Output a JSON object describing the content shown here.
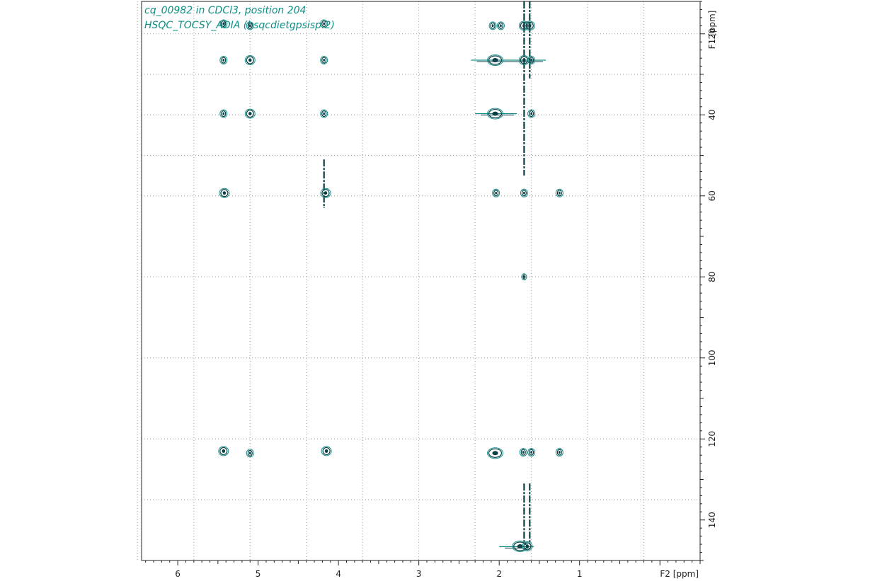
{
  "title_lines": [
    "cq_00982 in CDCl3, position 204",
    "HSQC_TOCSY_ADIA (hsqcdietgpsisp.2)"
  ],
  "colors": {
    "title": "#0e8f84",
    "contour_dark": "#0b3f45",
    "contour_light": "#178f88",
    "grid": "#9a9a9a",
    "axis": "#222222"
  },
  "chart_data": {
    "type": "scatter",
    "subtype": "2D NMR contour plot",
    "xlabel": "F2 [ppm]",
    "ylabel": "F1 [ppm]",
    "xlim": [
      6.45,
      -0.5
    ],
    "ylim": [
      150,
      12
    ],
    "x_ticks": [
      6,
      5,
      4,
      3,
      2,
      1
    ],
    "y_ticks": [
      20,
      40,
      60,
      80,
      100,
      120,
      140
    ],
    "grid": true,
    "x_grid": [
      6.5,
      5.8,
      5.1,
      4.4,
      3.7,
      3.0,
      2.3,
      1.6,
      0.9,
      0.2
    ],
    "y_grid": [
      20,
      30,
      40,
      50,
      60,
      80,
      100,
      120,
      135
    ],
    "peaks": [
      {
        "x": 5.43,
        "y": 17.5,
        "size": "s"
      },
      {
        "x": 5.1,
        "y": 18.0,
        "size": "s"
      },
      {
        "x": 4.18,
        "y": 17.5,
        "size": "s"
      },
      {
        "x": 2.08,
        "y": 18.0,
        "size": "s"
      },
      {
        "x": 1.98,
        "y": 18.0,
        "size": "s"
      },
      {
        "x": 1.69,
        "y": 18.0,
        "size": "m"
      },
      {
        "x": 1.62,
        "y": 18.0,
        "size": "m"
      },
      {
        "x": 5.43,
        "y": 26.5,
        "size": "s"
      },
      {
        "x": 5.1,
        "y": 26.5,
        "size": "m"
      },
      {
        "x": 4.18,
        "y": 26.5,
        "size": "s"
      },
      {
        "x": 2.05,
        "y": 26.5,
        "size": "l"
      },
      {
        "x": 1.69,
        "y": 26.5,
        "size": "m"
      },
      {
        "x": 1.6,
        "y": 26.5,
        "size": "s"
      },
      {
        "x": 5.43,
        "y": 39.7,
        "size": "s"
      },
      {
        "x": 5.1,
        "y": 39.7,
        "size": "m"
      },
      {
        "x": 4.18,
        "y": 39.7,
        "size": "s"
      },
      {
        "x": 2.05,
        "y": 39.7,
        "size": "l"
      },
      {
        "x": 1.6,
        "y": 39.7,
        "size": "s"
      },
      {
        "x": 5.42,
        "y": 59.3,
        "size": "m"
      },
      {
        "x": 4.16,
        "y": 59.3,
        "size": "m"
      },
      {
        "x": 2.04,
        "y": 59.3,
        "size": "s"
      },
      {
        "x": 1.69,
        "y": 59.3,
        "size": "s"
      },
      {
        "x": 1.25,
        "y": 59.3,
        "size": "s"
      },
      {
        "x": 1.69,
        "y": 80.0,
        "size": "xs"
      },
      {
        "x": 5.43,
        "y": 123.0,
        "size": "m"
      },
      {
        "x": 5.1,
        "y": 123.5,
        "size": "s"
      },
      {
        "x": 4.15,
        "y": 123.0,
        "size": "m"
      },
      {
        "x": 2.05,
        "y": 123.5,
        "size": "l"
      },
      {
        "x": 1.7,
        "y": 123.3,
        "size": "s"
      },
      {
        "x": 1.6,
        "y": 123.3,
        "size": "s"
      },
      {
        "x": 1.25,
        "y": 123.3,
        "size": "s"
      },
      {
        "x": 1.74,
        "y": 146.5,
        "size": "l"
      },
      {
        "x": 1.65,
        "y": 146.5,
        "size": "m"
      }
    ],
    "streaks": [
      {
        "x": 1.69,
        "y_from": 12,
        "y_to": 55
      },
      {
        "x": 1.62,
        "y_from": 12,
        "y_to": 31
      },
      {
        "x": 4.18,
        "y_from": 51,
        "y_to": 63
      },
      {
        "x": 1.69,
        "y_from": 131,
        "y_to": 146
      },
      {
        "x": 1.62,
        "y_from": 131,
        "y_to": 146
      }
    ],
    "ridges": [
      {
        "y": 26.5,
        "x_from": 2.35,
        "x_to": 1.42
      },
      {
        "y": 39.7,
        "x_from": 2.3,
        "x_to": 1.78
      },
      {
        "y": 146.6,
        "x_from": 2.0,
        "x_to": 1.57
      }
    ]
  }
}
